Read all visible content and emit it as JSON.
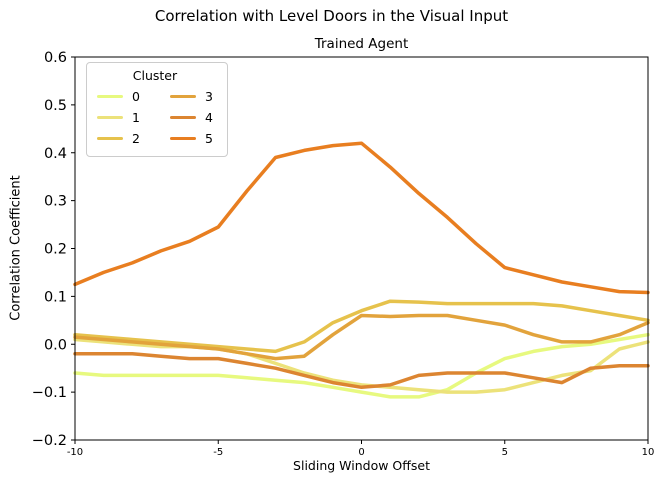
{
  "chart_data": {
    "type": "line",
    "suptitle": "Correlation with Level Doors in the Visual Input",
    "title": "Trained Agent",
    "xlabel": "Sliding Window Offset",
    "ylabel": "Correlation Coefficient",
    "xlim": [
      -10,
      10
    ],
    "ylim": [
      -0.2,
      0.6
    ],
    "xticks": [
      -10,
      -5,
      0,
      5,
      10
    ],
    "xticklabels": [
      "-10",
      "-5",
      "0",
      "5",
      "10"
    ],
    "yticks": [
      -0.2,
      -0.1,
      0.0,
      0.1,
      0.2,
      0.3,
      0.4,
      0.5,
      0.6
    ],
    "yticklabels": [
      "−0.2",
      "−0.1",
      "0.0",
      "0.1",
      "0.2",
      "0.3",
      "0.4",
      "0.5",
      "0.6"
    ],
    "grid": false,
    "legend": {
      "title": "Cluster",
      "position": "upper left",
      "ncol": 2,
      "entries": [
        "0",
        "1",
        "2",
        "3",
        "4",
        "5"
      ]
    },
    "x": [
      -10,
      -9,
      -8,
      -7,
      -6,
      -5,
      -4,
      -3,
      -2,
      -1,
      0,
      1,
      2,
      3,
      4,
      5,
      6,
      7,
      8,
      9,
      10
    ],
    "series": [
      {
        "name": "0",
        "color": "#e7f97f",
        "values": [
          -0.06,
          -0.065,
          -0.065,
          -0.065,
          -0.065,
          -0.065,
          -0.07,
          -0.075,
          -0.08,
          -0.09,
          -0.1,
          -0.11,
          -0.11,
          -0.095,
          -0.06,
          -0.03,
          -0.015,
          -0.005,
          0.0,
          0.01,
          0.02
        ]
      },
      {
        "name": "1",
        "color": "#ece27a",
        "values": [
          0.01,
          0.005,
          0.0,
          -0.005,
          -0.005,
          -0.01,
          -0.02,
          -0.04,
          -0.06,
          -0.075,
          -0.085,
          -0.09,
          -0.095,
          -0.1,
          -0.1,
          -0.095,
          -0.08,
          -0.065,
          -0.055,
          -0.01,
          0.005
        ]
      },
      {
        "name": "2",
        "color": "#e6c24c",
        "values": [
          0.02,
          0.015,
          0.01,
          0.005,
          0.0,
          -0.005,
          -0.01,
          -0.015,
          0.005,
          0.045,
          0.07,
          0.09,
          0.088,
          0.085,
          0.085,
          0.085,
          0.085,
          0.08,
          0.07,
          0.06,
          0.05
        ]
      },
      {
        "name": "3",
        "color": "#e2a33c",
        "values": [
          0.015,
          0.01,
          0.005,
          0.0,
          -0.005,
          -0.01,
          -0.02,
          -0.03,
          -0.025,
          0.02,
          0.06,
          0.058,
          0.06,
          0.06,
          0.05,
          0.04,
          0.02,
          0.005,
          0.005,
          0.02,
          0.045
        ]
      },
      {
        "name": "4",
        "color": "#dc8531",
        "values": [
          -0.02,
          -0.02,
          -0.02,
          -0.025,
          -0.03,
          -0.03,
          -0.04,
          -0.05,
          -0.065,
          -0.08,
          -0.09,
          -0.085,
          -0.065,
          -0.06,
          -0.06,
          -0.06,
          -0.07,
          -0.08,
          -0.05,
          -0.045,
          -0.045
        ]
      },
      {
        "name": "5",
        "color": "#e87e20",
        "values": [
          0.125,
          0.15,
          0.17,
          0.195,
          0.215,
          0.245,
          0.32,
          0.39,
          0.405,
          0.415,
          0.42,
          0.37,
          0.315,
          0.265,
          0.21,
          0.16,
          0.145,
          0.13,
          0.12,
          0.11,
          0.108
        ]
      }
    ]
  }
}
